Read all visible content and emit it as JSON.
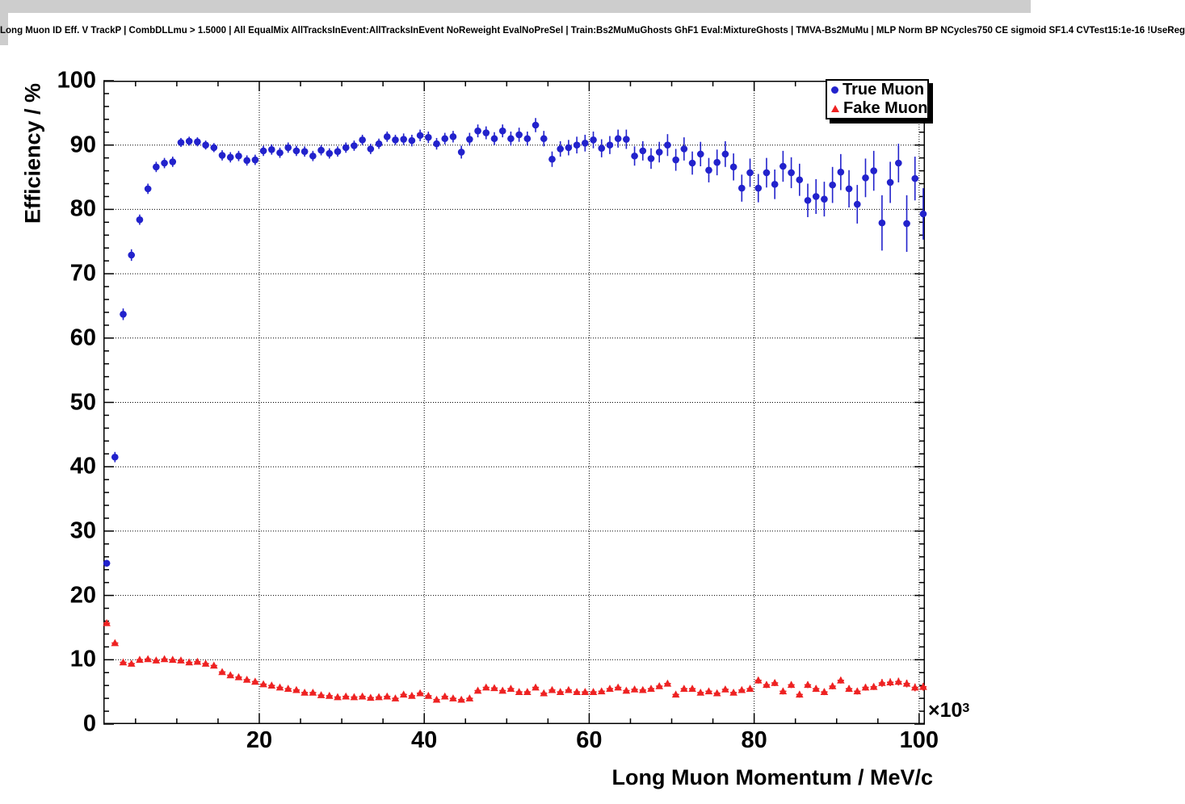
{
  "title": "Long Muon ID Eff. V TrackP | CombDLLmu > 1.5000 | All EqualMix AllTracksInEvent:AllTracksInEvent NoReweight EvalNoPreSel | Train:Bs2MuMuGhosts GhF1 Eval:MixtureGhosts | TMVA-Bs2MuMu | MLP Norm BP NCycles750 CE sigmoid SF1.4 CVTest15:1e-16 !UseReg",
  "axes": {
    "y_label": "Efficiency / %",
    "x_label": "Long Muon Momentum / MeV/c",
    "x_multiplier_base": "×10",
    "x_multiplier_exponent": "3",
    "x_tick_values": [
      20,
      40,
      60,
      80,
      100
    ],
    "x_tick_labels": [
      "20",
      "40",
      "60",
      "80",
      "100"
    ],
    "y_tick_values": [
      0,
      10,
      20,
      30,
      40,
      50,
      60,
      70,
      80,
      90,
      100
    ],
    "y_tick_labels": [
      "0",
      "10",
      "20",
      "30",
      "40",
      "50",
      "60",
      "70",
      "80",
      "90",
      "100"
    ]
  },
  "legend": {
    "entries": [
      {
        "label": "True Muon",
        "marker": "circle",
        "color": "#2222cc"
      },
      {
        "label": "Fake Muon",
        "marker": "triangle",
        "color": "#ee2222"
      }
    ]
  },
  "chart_data": {
    "type": "scatter",
    "title": "Long Muon ID Eff. V TrackP | CombDLLmu > 1.5000 | All EqualMix AllTracksInEvent:AllTracksInEvent NoReweight EvalNoPreSel | Train:Bs2MuMuGhosts GhF1 Eval:MixtureGhosts | TMVA-Bs2MuMu | MLP Norm BP NCycles750 CE sigmoid SF1.4 CVTest15:1e-16 !UseReg",
    "xlabel": "Long Muon Momentum / MeV/c (×10³)",
    "ylabel": "Efficiency / %",
    "xlim": [
      1.1,
      100.7
    ],
    "ylim": [
      0,
      100
    ],
    "grid": "dotted at major ticks",
    "legend_position": "top-right",
    "x_minor_step": 5,
    "y_minor_step": 2,
    "x": [
      1.5,
      2.5,
      3.5,
      4.5,
      5.5,
      6.5,
      7.5,
      8.5,
      9.5,
      10.5,
      11.5,
      12.5,
      13.5,
      14.5,
      15.5,
      16.5,
      17.5,
      18.5,
      19.5,
      20.5,
      21.5,
      22.5,
      23.5,
      24.5,
      25.5,
      26.5,
      27.5,
      28.5,
      29.5,
      30.5,
      31.5,
      32.5,
      33.5,
      34.5,
      35.5,
      36.5,
      37.5,
      38.5,
      39.5,
      40.5,
      41.5,
      42.5,
      43.5,
      44.5,
      45.5,
      46.5,
      47.5,
      48.5,
      49.5,
      50.5,
      51.5,
      52.5,
      53.5,
      54.5,
      55.5,
      56.5,
      57.5,
      58.5,
      59.5,
      60.5,
      61.5,
      62.5,
      63.5,
      64.5,
      65.5,
      66.5,
      67.5,
      68.5,
      69.5,
      70.5,
      71.5,
      72.5,
      73.5,
      74.5,
      75.5,
      76.5,
      77.5,
      78.5,
      79.5,
      80.5,
      81.5,
      82.5,
      83.5,
      84.5,
      85.5,
      86.5,
      87.5,
      88.5,
      89.5,
      90.5,
      91.5,
      92.5,
      93.5,
      94.5,
      95.5,
      96.5,
      97.5,
      98.5,
      99.5,
      100.5
    ],
    "series": [
      {
        "name": "True Muon",
        "marker": "circle",
        "color": "#2222cc",
        "values": [
          25.0,
          41.5,
          63.7,
          72.9,
          78.4,
          83.2,
          86.6,
          87.2,
          87.4,
          90.4,
          90.6,
          90.5,
          90.0,
          89.6,
          88.4,
          88.1,
          88.3,
          87.6,
          87.7,
          89.1,
          89.3,
          88.8,
          89.6,
          89.1,
          89.0,
          88.3,
          89.2,
          88.7,
          89.0,
          89.6,
          89.9,
          90.8,
          89.4,
          90.2,
          91.3,
          90.8,
          90.9,
          90.7,
          91.5,
          91.2,
          90.2,
          91.0,
          91.3,
          88.9,
          90.9,
          92.2,
          91.9,
          91.0,
          92.2,
          91.0,
          91.6,
          91.0,
          93.1,
          91.0,
          87.8,
          89.4,
          89.6,
          90.0,
          90.3,
          90.8,
          89.5,
          90.0,
          91.0,
          90.9,
          88.3,
          89.1,
          87.9,
          88.9,
          90.0,
          87.7,
          89.4,
          87.2,
          88.6,
          86.1,
          87.3,
          88.6,
          86.6,
          83.3,
          85.7,
          83.3,
          85.7,
          83.9,
          86.7,
          85.7,
          84.6,
          81.4,
          82.0,
          81.6,
          83.8,
          85.8,
          83.2,
          80.8,
          84.9,
          86.0,
          77.9,
          84.2,
          87.2,
          77.8,
          84.8,
          79.3
        ],
        "yerr": [
          0.5,
          0.8,
          0.9,
          0.9,
          0.8,
          0.8,
          0.8,
          0.8,
          0.8,
          0.7,
          0.7,
          0.7,
          0.7,
          0.7,
          0.8,
          0.8,
          0.8,
          0.8,
          0.8,
          0.8,
          0.8,
          0.8,
          0.8,
          0.8,
          0.8,
          0.8,
          0.8,
          0.8,
          0.8,
          0.8,
          0.8,
          0.8,
          0.8,
          0.8,
          0.8,
          0.8,
          0.9,
          0.9,
          0.9,
          0.9,
          0.9,
          0.9,
          0.9,
          1.0,
          1.0,
          1.0,
          1.0,
          1.0,
          1.0,
          1.1,
          1.1,
          1.1,
          1.1,
          1.2,
          1.2,
          1.2,
          1.2,
          1.3,
          1.3,
          1.3,
          1.4,
          1.4,
          1.4,
          1.5,
          1.5,
          1.5,
          1.6,
          1.6,
          1.7,
          1.7,
          1.8,
          1.8,
          1.9,
          1.9,
          2.0,
          2.0,
          2.1,
          2.1,
          2.2,
          2.2,
          2.3,
          2.3,
          2.4,
          2.4,
          2.5,
          2.6,
          2.7,
          2.7,
          2.8,
          2.8,
          2.9,
          3.0,
          3.0,
          3.1,
          4.3,
          3.2,
          3.0,
          4.4,
          3.4,
          4.0
        ]
      },
      {
        "name": "Fake Muon",
        "marker": "triangle",
        "color": "#ee2222",
        "values": [
          15.7,
          12.6,
          9.6,
          9.4,
          10.0,
          10.1,
          9.9,
          10.1,
          10.0,
          9.9,
          9.6,
          9.7,
          9.4,
          9.1,
          8.1,
          7.6,
          7.3,
          6.9,
          6.6,
          6.2,
          6.0,
          5.7,
          5.5,
          5.3,
          4.9,
          4.9,
          4.5,
          4.4,
          4.2,
          4.3,
          4.2,
          4.3,
          4.1,
          4.2,
          4.3,
          4.0,
          4.6,
          4.4,
          4.8,
          4.4,
          3.8,
          4.3,
          4.0,
          3.8,
          4.0,
          5.2,
          5.7,
          5.6,
          5.2,
          5.5,
          5.0,
          5.0,
          5.7,
          4.8,
          5.3,
          5.0,
          5.3,
          5.0,
          5.0,
          5.0,
          5.1,
          5.5,
          5.7,
          5.2,
          5.4,
          5.3,
          5.5,
          5.9,
          6.3,
          4.6,
          5.5,
          5.5,
          4.9,
          5.1,
          4.8,
          5.4,
          4.9,
          5.3,
          5.5,
          6.8,
          6.1,
          6.4,
          5.1,
          6.1,
          4.6,
          6.1,
          5.5,
          5.0,
          5.9,
          6.8,
          5.5,
          5.1,
          5.7,
          5.8,
          6.4,
          6.5,
          6.6,
          6.3,
          5.7,
          5.8
        ],
        "yerr": [
          0.4,
          0.4,
          0.3,
          0.3,
          0.3,
          0.3,
          0.3,
          0.3,
          0.3,
          0.3,
          0.3,
          0.3,
          0.3,
          0.3,
          0.3,
          0.3,
          0.3,
          0.3,
          0.3,
          0.3,
          0.3,
          0.3,
          0.3,
          0.3,
          0.3,
          0.3,
          0.3,
          0.3,
          0.3,
          0.3,
          0.3,
          0.3,
          0.3,
          0.3,
          0.3,
          0.3,
          0.3,
          0.3,
          0.3,
          0.3,
          0.3,
          0.3,
          0.3,
          0.3,
          0.3,
          0.3,
          0.3,
          0.3,
          0.3,
          0.3,
          0.3,
          0.3,
          0.3,
          0.3,
          0.3,
          0.3,
          0.3,
          0.3,
          0.3,
          0.3,
          0.3,
          0.4,
          0.4,
          0.4,
          0.4,
          0.4,
          0.4,
          0.4,
          0.4,
          0.4,
          0.4,
          0.4,
          0.4,
          0.4,
          0.4,
          0.4,
          0.4,
          0.4,
          0.4,
          0.5,
          0.5,
          0.5,
          0.5,
          0.5,
          0.5,
          0.5,
          0.5,
          0.5,
          0.5,
          0.5,
          0.5,
          0.5,
          0.5,
          0.5,
          0.6,
          0.6,
          0.6,
          0.6,
          0.6,
          0.6
        ]
      }
    ]
  }
}
